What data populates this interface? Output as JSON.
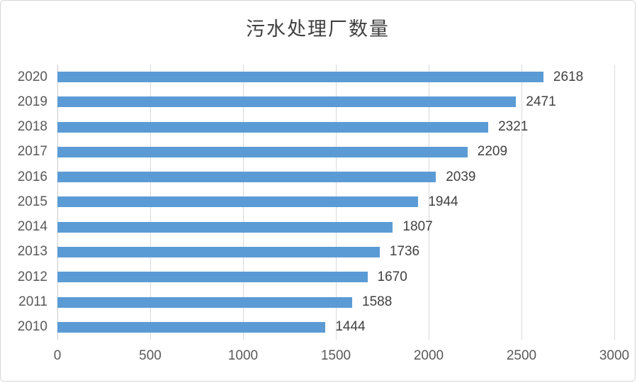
{
  "chart_data": {
    "type": "bar",
    "orientation": "horizontal",
    "title": "污水处理厂数量",
    "categories": [
      "2020",
      "2019",
      "2018",
      "2017",
      "2016",
      "2015",
      "2014",
      "2013",
      "2012",
      "2011",
      "2010"
    ],
    "values": [
      2618,
      2471,
      2321,
      2209,
      2039,
      1944,
      1807,
      1736,
      1670,
      1588,
      1444
    ],
    "xlabel": "",
    "ylabel": "",
    "xlim": [
      0,
      3000
    ],
    "x_ticks": [
      0,
      500,
      1000,
      1500,
      2000,
      2500,
      3000
    ],
    "grid": true,
    "legend": false,
    "data_labels": true,
    "colors": {
      "bar": "#5b9bd5",
      "gridline": "#d9d9d9",
      "axis_line": "#c9c9c9",
      "tick_label": "#595959",
      "data_label": "#404040",
      "title": "#404040",
      "frame_border": "#d6d6d6",
      "background": "#ffffff"
    }
  }
}
